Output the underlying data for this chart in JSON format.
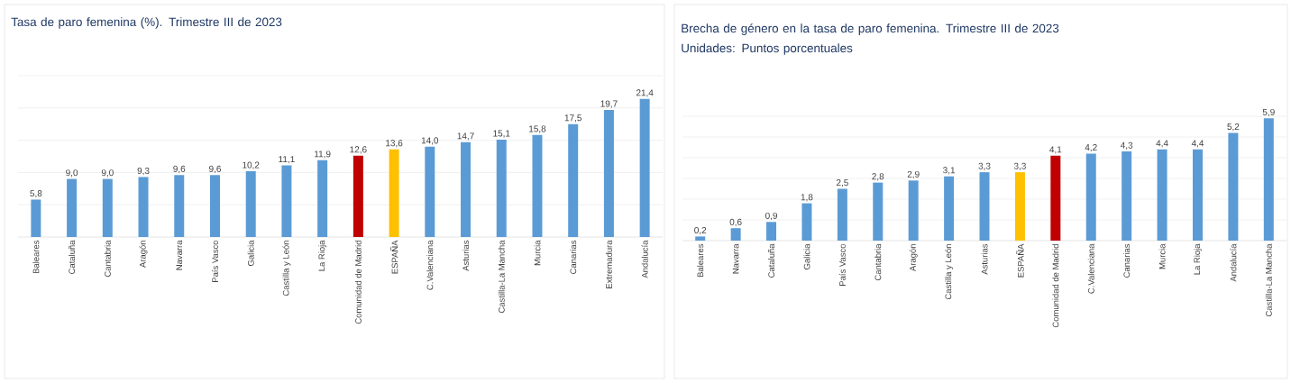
{
  "chart_data": [
    {
      "type": "bar",
      "title": "Tasa de paro femenina (%). Trimestre III de 2023",
      "categories": [
        "Baleares",
        "Cataluña",
        "Cantabria",
        "Aragón",
        "Navarra",
        "País Vasco",
        "Galicia",
        "Castilla y León",
        "La Rioja",
        "Comunidad de Madrid",
        "ESPAÑA",
        "C.Valenciana",
        "Asturias",
        "Castilla-La Mancha",
        "Murcia",
        "Canarias",
        "Extremadura",
        "Andalucía"
      ],
      "values": [
        5.8,
        9.0,
        9.0,
        9.3,
        9.6,
        9.6,
        10.2,
        11.1,
        11.9,
        12.6,
        13.6,
        14.0,
        14.7,
        15.1,
        15.8,
        17.5,
        19.7,
        21.4
      ],
      "value_labels": [
        "5,8",
        "9,0",
        "9,0",
        "9,3",
        "9,6",
        "9,6",
        "10,2",
        "11,1",
        "11,9",
        "12,6",
        "13,6",
        "14,0",
        "14,7",
        "15,1",
        "15,8",
        "17,5",
        "19,7",
        "21,4"
      ],
      "colors": [
        "#5b9bd5",
        "#5b9bd5",
        "#5b9bd5",
        "#5b9bd5",
        "#5b9bd5",
        "#5b9bd5",
        "#5b9bd5",
        "#5b9bd5",
        "#5b9bd5",
        "#c00000",
        "#ffc000",
        "#5b9bd5",
        "#5b9bd5",
        "#5b9bd5",
        "#5b9bd5",
        "#5b9bd5",
        "#5b9bd5",
        "#5b9bd5"
      ],
      "ylim": [
        0,
        25
      ],
      "yticks": [
        {
          "value": 0,
          "label": null
        },
        {
          "value": 5,
          "label": null
        },
        {
          "value": 10,
          "label": null
        },
        {
          "value": 15,
          "label": null
        },
        {
          "value": 20,
          "label": null
        },
        {
          "value": 25,
          "label": null
        }
      ],
      "grid": "y",
      "tick_labels": "x"
    },
    {
      "type": "bar",
      "title": "Brecha de género en la tasa de paro femenina. Trimestre III de 2023",
      "subtitle": "Unidades: Puntos porcentuales",
      "categories": [
        "Baleares",
        "Navarra",
        "Cataluña",
        "Galicia",
        "País Vasco",
        "Cantabria",
        "Aragón",
        "Castilla y León",
        "Asturias",
        "ESPAÑA",
        "Comunidad de Madrid",
        "C.Valenciana",
        "Canarias",
        "Murcia",
        "La Rioja",
        "Andalucía",
        "Castilla-La Mancha"
      ],
      "values": [
        0.2,
        0.6,
        0.9,
        1.8,
        2.5,
        2.8,
        2.9,
        3.1,
        3.3,
        3.3,
        4.1,
        4.2,
        4.3,
        4.4,
        4.4,
        5.2,
        5.9
      ],
      "value_labels": [
        "0,2",
        "0,6",
        "0,9",
        "1,8",
        "2,5",
        "2,8",
        "2,9",
        "3,1",
        "3,3",
        "3,3",
        "4,1",
        "4,2",
        "4,3",
        "4,4",
        "4,4",
        "5,2",
        "5,9"
      ],
      "colors": [
        "#5b9bd5",
        "#5b9bd5",
        "#5b9bd5",
        "#5b9bd5",
        "#5b9bd5",
        "#5b9bd5",
        "#5b9bd5",
        "#5b9bd5",
        "#5b9bd5",
        "#ffc000",
        "#c00000",
        "#5b9bd5",
        "#5b9bd5",
        "#5b9bd5",
        "#5b9bd5",
        "#5b9bd5",
        "#5b9bd5"
      ],
      "ylim": [
        0,
        6
      ],
      "yticks": [
        {
          "value": 0,
          "label": null
        },
        {
          "value": 1,
          "label": null
        },
        {
          "value": 2,
          "label": null
        },
        {
          "value": 3,
          "label": null
        },
        {
          "value": 4,
          "label": null
        },
        {
          "value": 5,
          "label": null
        },
        {
          "value": 6,
          "label": null
        }
      ],
      "grid": "y",
      "tick_labels": "x"
    }
  ]
}
